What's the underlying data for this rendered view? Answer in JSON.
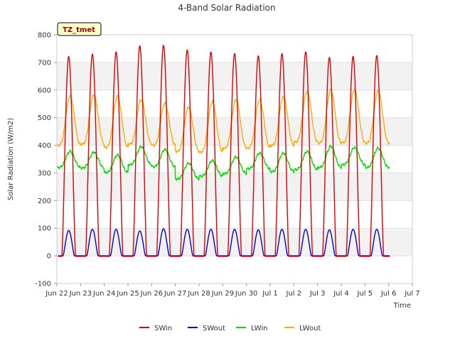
{
  "chart_data": {
    "type": "line",
    "title": "4-Band Solar Radiation",
    "xlabel": "Time",
    "ylabel": "Solar Radiation (W/m2)",
    "ylim": [
      -100,
      800
    ],
    "yticks": [
      -100,
      0,
      100,
      200,
      300,
      400,
      500,
      600,
      700,
      800
    ],
    "xlim_days": [
      0,
      15
    ],
    "xticks": [
      {
        "day": 0,
        "label": "Jun 22"
      },
      {
        "day": 1,
        "label": "Jun 23"
      },
      {
        "day": 2,
        "label": "Jun 24"
      },
      {
        "day": 3,
        "label": "Jun 25"
      },
      {
        "day": 4,
        "label": "Jun 26"
      },
      {
        "day": 5,
        "label": "Jun 27"
      },
      {
        "day": 6,
        "label": "Jun 28"
      },
      {
        "day": 7,
        "label": "Jun 29"
      },
      {
        "day": 8,
        "label": "Jun 30"
      },
      {
        "day": 9,
        "label": "Jul 1"
      },
      {
        "day": 10,
        "label": "Jul 2"
      },
      {
        "day": 11,
        "label": "Jul 3"
      },
      {
        "day": 12,
        "label": "Jul 4"
      },
      {
        "day": 13,
        "label": "Jul 5"
      },
      {
        "day": 14,
        "label": "Jul 6"
      },
      {
        "day": 15,
        "label": "Jul 7"
      }
    ],
    "grid": true,
    "legend_position": "bottom",
    "annotation": "TZ_tmet",
    "series": [
      {
        "name": "SWin",
        "color": "#dd0000",
        "daily_peak": [
          722,
          730,
          738,
          760,
          762,
          745,
          738,
          732,
          724,
          732,
          738,
          718,
          722,
          725
        ],
        "night": -2
      },
      {
        "name": "SWout",
        "color": "#0000cc",
        "daily_peak": [
          92,
          96,
          96,
          90,
          98,
          96,
          96,
          96,
          94,
          96,
          96,
          94,
          96,
          96
        ],
        "night": 0
      },
      {
        "name": "LWin",
        "color": "#00dd00",
        "daily_peak": [
          378,
          375,
          365,
          395,
          385,
          335,
          345,
          358,
          372,
          372,
          378,
          397,
          392,
          390
        ],
        "daily_min": [
          320,
          318,
          302,
          330,
          322,
          278,
          288,
          298,
          315,
          305,
          312,
          320,
          330,
          320
        ]
      },
      {
        "name": "LWout",
        "color": "#ffaa00",
        "daily_peak": [
          578,
          582,
          578,
          565,
          552,
          538,
          558,
          565,
          565,
          575,
          595,
          600,
          602,
          598
        ],
        "daily_min": [
          400,
          405,
          392,
          405,
          400,
          378,
          375,
          390,
          390,
          400,
          412,
          408,
          410,
          408
        ]
      }
    ]
  }
}
